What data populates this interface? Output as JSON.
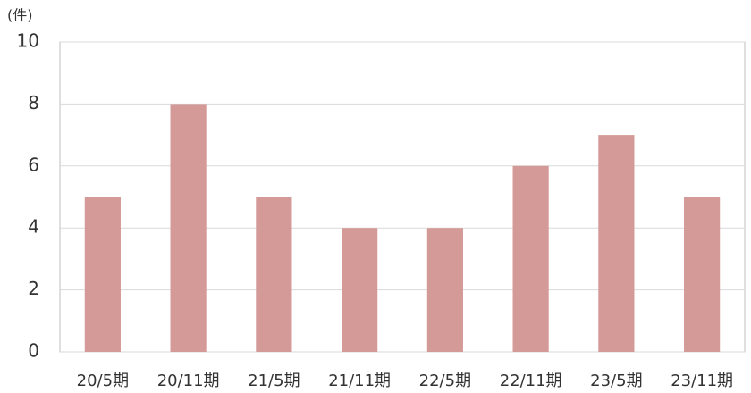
{
  "chart_data": {
    "type": "bar",
    "y_label": "(件)",
    "categories": [
      "20/5期",
      "20/11期",
      "21/5期",
      "21/11期",
      "22/5期",
      "22/11期",
      "23/5期",
      "23/11期"
    ],
    "values": [
      5,
      8,
      5,
      4,
      4,
      6,
      7,
      5
    ],
    "color": "#d49a98",
    "ylim": [
      0,
      10
    ],
    "yticks": [
      0,
      2,
      4,
      6,
      8,
      10
    ],
    "grid": true
  }
}
